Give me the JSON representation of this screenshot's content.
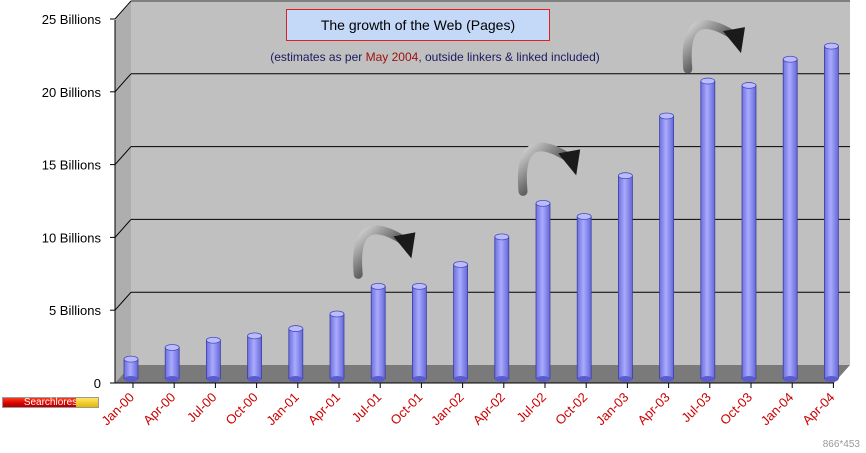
{
  "title": "The growth of the Web (Pages)",
  "subtitle": {
    "before": "(estimates as per ",
    "highlight": "May 2004",
    "after": ", outside linkers & linked included)"
  },
  "brand_label": "Searchlores",
  "dimension_label": "866*453",
  "colors": {
    "bar": "#9a9cf6",
    "bar_top": "#babcff",
    "bar_dark": "#5a5ccc",
    "wall": "#c0c0c0",
    "floor": "#7a7a7a",
    "month_label": "#cc0000",
    "highlight": "#a01010"
  },
  "chart_data": {
    "type": "bar",
    "style": "3d-cylinder",
    "categories": [
      "Jan-00",
      "Apr-00",
      "Jul-00",
      "Oct-00",
      "Jan-01",
      "Apr-01",
      "Jul-01",
      "Oct-01",
      "Jan-02",
      "Apr-02",
      "Jul-02",
      "Oct-02",
      "Jan-03",
      "Apr-03",
      "Jul-03",
      "Oct-03",
      "Jan-04",
      "Apr-04"
    ],
    "values": [
      1.5,
      2.3,
      2.8,
      3.1,
      3.6,
      4.6,
      6.5,
      6.5,
      8.0,
      9.9,
      12.2,
      11.3,
      14.1,
      18.2,
      20.6,
      20.3,
      22.1,
      23.0
    ],
    "yticks": [
      "0",
      "5  Billions",
      "10  Billions",
      "15  Billions",
      "20  Billions",
      "25  Billions"
    ],
    "ylim": [
      0,
      25
    ],
    "grid": true,
    "annotations": [
      {
        "type": "curved-arrow",
        "from": "Jul-01",
        "to": "Oct-01"
      },
      {
        "type": "curved-arrow",
        "from": "Jul-02",
        "to": "Oct-02"
      },
      {
        "type": "curved-arrow",
        "from": "Jul-03",
        "to": "Oct-03"
      }
    ]
  }
}
